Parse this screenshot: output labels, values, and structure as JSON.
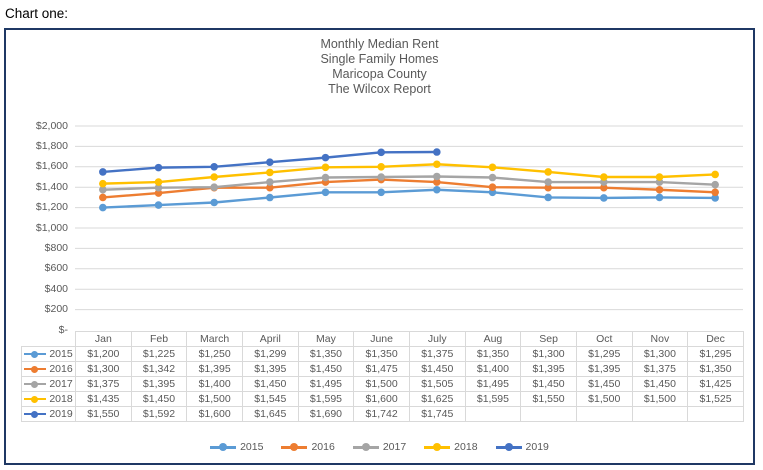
{
  "page": {
    "heading": "Chart one:"
  },
  "chart_data": {
    "type": "line",
    "title_lines": [
      "Monthly Median Rent",
      "Single Family Homes",
      "Maricopa County",
      "The Wilcox Report"
    ],
    "categories": [
      "Jan",
      "Feb",
      "March",
      "April",
      "May",
      "June",
      "July",
      "Aug",
      "Sep",
      "Oct",
      "Nov",
      "Dec"
    ],
    "series": [
      {
        "name": "2015",
        "color": "#5B9BD5",
        "values": [
          1200,
          1225,
          1250,
          1299,
          1350,
          1350,
          1375,
          1350,
          1300,
          1295,
          1300,
          1295
        ]
      },
      {
        "name": "2016",
        "color": "#ED7D31",
        "values": [
          1300,
          1342,
          1395,
          1395,
          1450,
          1475,
          1450,
          1400,
          1395,
          1395,
          1375,
          1350
        ]
      },
      {
        "name": "2017",
        "color": "#A5A5A5",
        "values": [
          1375,
          1395,
          1400,
          1450,
          1495,
          1500,
          1505,
          1495,
          1450,
          1450,
          1450,
          1425
        ]
      },
      {
        "name": "2018",
        "color": "#FFC000",
        "values": [
          1435,
          1450,
          1500,
          1545,
          1595,
          1600,
          1625,
          1595,
          1550,
          1500,
          1500,
          1525
        ]
      },
      {
        "name": "2019",
        "color": "#4472C4",
        "values": [
          1550,
          1592,
          1600,
          1645,
          1690,
          1742,
          1745,
          null,
          null,
          null,
          null,
          null
        ]
      }
    ],
    "ylim": [
      0,
      2000
    ],
    "y_ticks": [
      {
        "value": 2000,
        "label": "$2,000"
      },
      {
        "value": 1800,
        "label": "$1,800"
      },
      {
        "value": 1600,
        "label": "$1,600"
      },
      {
        "value": 1400,
        "label": "$1,400"
      },
      {
        "value": 1200,
        "label": "$1,200"
      },
      {
        "value": 1000,
        "label": "$1,000"
      },
      {
        "value": 800,
        "label": "$800"
      },
      {
        "value": 600,
        "label": "$600"
      },
      {
        "value": 400,
        "label": "$400"
      },
      {
        "value": 200,
        "label": "$200"
      },
      {
        "value": 0,
        "label": "$-"
      }
    ],
    "grid": true,
    "gridline_color": "#D9D9D9",
    "border_color": "#1F3864",
    "text_color": "#595959",
    "legend_position": "bottom",
    "value_format": "$#,##0",
    "has_data_table": true
  }
}
